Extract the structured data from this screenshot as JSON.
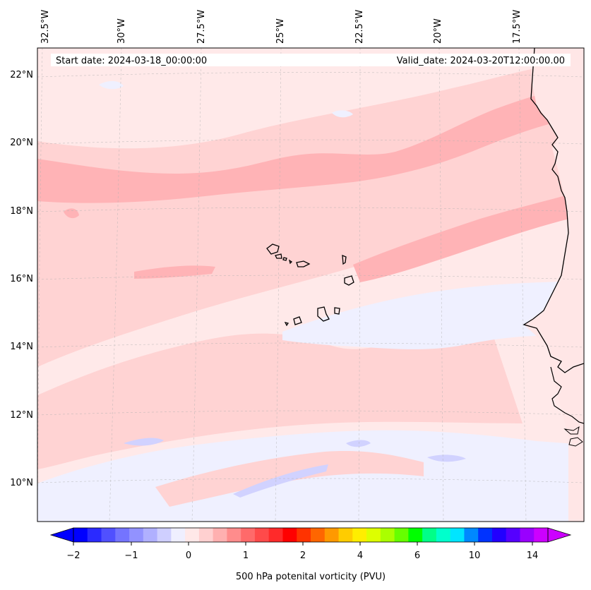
{
  "map": {
    "start_date_text": "Start date: 2024-03-18_00:00:00",
    "valid_date_text": "Valid_date: 2024-03-20T12:00:00.00",
    "lon_labels": [
      "32.5°W",
      "30°W",
      "27.5°W",
      "25°W",
      "22.5°W",
      "20°W",
      "17.5°W"
    ],
    "lat_labels": [
      "22°N",
      "20°N",
      "18°N",
      "16°N",
      "14°N",
      "12°N",
      "10°N"
    ],
    "coastline_color": "#000000",
    "gridline_color": "#b0b0b0"
  },
  "colorbar": {
    "label": "500 hPa potenital vorticity (PVU)",
    "tick_labels": [
      "−2",
      "−1",
      "0",
      "1",
      "2",
      "4",
      "6",
      "10",
      "14"
    ],
    "colors": [
      "#0000ff",
      "#2a2aff",
      "#5050ff",
      "#7474ff",
      "#9292ff",
      "#b0b0ff",
      "#cfcfff",
      "#efefff",
      "#ffe8e8",
      "#ffd0d0",
      "#ffb0b0",
      "#ff8c8c",
      "#ff6a6a",
      "#ff4a4a",
      "#ff2a2a",
      "#ff0000",
      "#ff3300",
      "#ff6600",
      "#ff9900",
      "#ffcc00",
      "#ffee00",
      "#ddff00",
      "#aaff00",
      "#66ff00",
      "#00ff00",
      "#00ff88",
      "#00ffcc",
      "#00e5ff",
      "#0088ff",
      "#0033ff",
      "#2200ff",
      "#5500ff",
      "#9900ff",
      "#cc00ff"
    ]
  }
}
